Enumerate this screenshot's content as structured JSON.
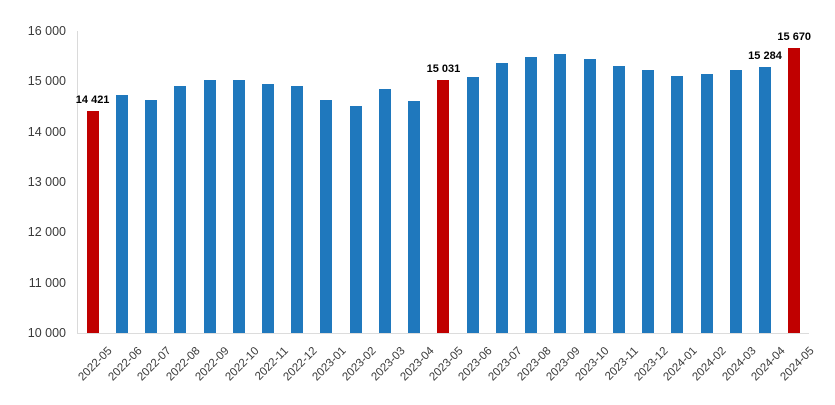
{
  "page": {
    "background": "#ffffff"
  },
  "chart_data": {
    "type": "bar",
    "title": "",
    "xlabel": "",
    "ylabel": "",
    "categories": [
      "2022-05",
      "2022-06",
      "2022-07",
      "2022-08",
      "2022-09",
      "2022-10",
      "2022-11",
      "2022-12",
      "2023-01",
      "2023-02",
      "2023-03",
      "2023-04",
      "2023-05",
      "2023-06",
      "2023-07",
      "2023-08",
      "2023-09",
      "2023-10",
      "2023-11",
      "2023-12",
      "2024-01",
      "2024-02",
      "2024-03",
      "2024-04",
      "2024-05"
    ],
    "values": [
      14421,
      14720,
      14640,
      14910,
      15030,
      15020,
      14950,
      14910,
      14630,
      14520,
      14840,
      14610,
      15031,
      15080,
      15360,
      15490,
      15540,
      15450,
      15300,
      15230,
      15100,
      15150,
      15230,
      15284,
      15670
    ],
    "highlighted_categories": [
      "2022-05",
      "2023-05",
      "2024-05"
    ],
    "data_labels": {
      "2022-05": "14 421",
      "2023-05": "15 031",
      "2024-04": "15 284",
      "2024-05": "15 670"
    },
    "ylim": [
      10000,
      16000
    ],
    "ytick_step": 1000,
    "ytick_labels": [
      "16 000",
      "15 000",
      "14 000",
      "13 000",
      "12 000",
      "11 000",
      "10 000"
    ],
    "grid": false,
    "legend": null,
    "colors": {
      "bar": "#1f78bd",
      "highlight": "#c00000",
      "axis_line": "#dcdcdc",
      "tick_text": "#3a3a3a",
      "data_label_text": "#000000"
    }
  }
}
